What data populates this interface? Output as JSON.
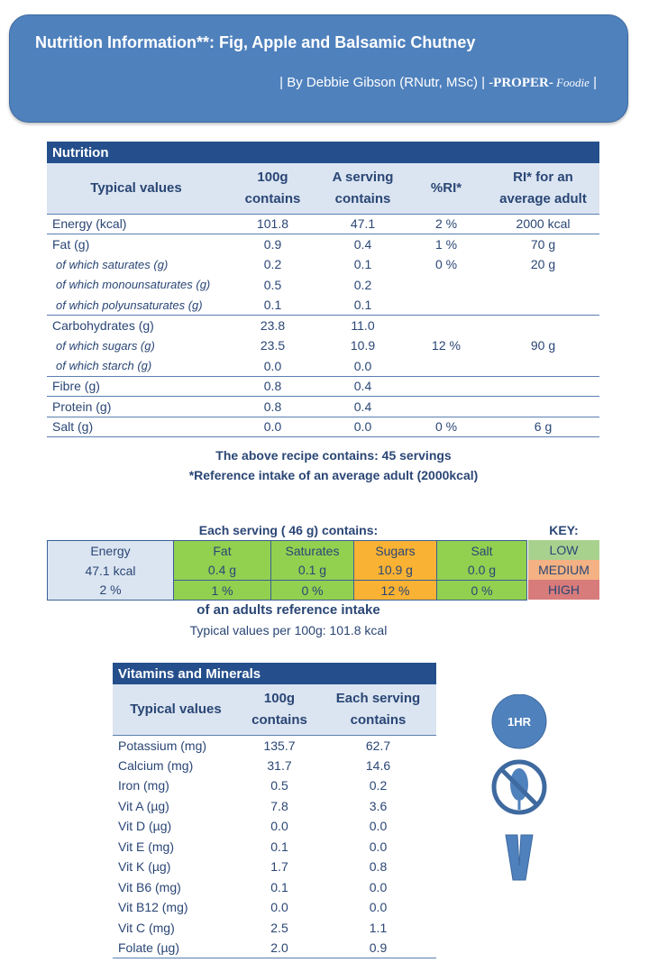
{
  "header": {
    "title": "Nutrition Information**:  Fig, Apple and Balsamic Chutney",
    "byline": "| By Debbie Gibson (RNutr, MSc) | ",
    "brand_proper": "-PROPER-",
    "brand_foodie": " Foodie",
    "end": " |"
  },
  "nutrition": {
    "caption": "Nutrition",
    "columns": [
      "Typical values",
      "100g contains",
      "A serving contains",
      "%RI*",
      "RI* for an average adult"
    ],
    "rows": [
      {
        "label": "Energy (kcal)",
        "per100": "101.8",
        "serving": "47.1",
        "ri": "2 %",
        "adult": "2000  kcal",
        "sub": false
      },
      {
        "label": "Fat (g)",
        "per100": "0.9",
        "serving": "0.4",
        "ri": "1 %",
        "adult": "70  g",
        "sub": false
      },
      {
        "label": "of which saturates (g)",
        "per100": "0.2",
        "serving": "0.1",
        "ri": "0 %",
        "adult": "20  g",
        "sub": true
      },
      {
        "label": "of which monounsaturates (g)",
        "per100": "0.5",
        "serving": "0.2",
        "ri": "",
        "adult": "",
        "sub": true
      },
      {
        "label": "of which polyunsaturates (g)",
        "per100": "0.1",
        "serving": "0.1",
        "ri": "",
        "adult": "",
        "sub": true
      },
      {
        "label": "Carbohydrates (g)",
        "per100": "23.8",
        "serving": "11.0",
        "ri": "",
        "adult": "",
        "sub": false
      },
      {
        "label": "of which sugars (g)",
        "per100": "23.5",
        "serving": "10.9",
        "ri": "12 %",
        "adult": "90  g",
        "sub": true
      },
      {
        "label": "of which starch (g)",
        "per100": "0.0",
        "serving": "0.0",
        "ri": "",
        "adult": "",
        "sub": true
      },
      {
        "label": "Fibre (g)",
        "per100": "0.8",
        "serving": "0.4",
        "ri": "",
        "adult": "",
        "sub": false
      },
      {
        "label": "Protein (g)",
        "per100": "0.8",
        "serving": "0.4",
        "ri": "",
        "adult": "",
        "sub": false
      },
      {
        "label": "Salt (g)",
        "per100": "0.0",
        "serving": "0.0",
        "ri": "0 %",
        "adult": "6  g",
        "sub": false
      }
    ],
    "servings_text": "The above recipe contains:    45    servings",
    "ri_note": "*Reference intake of an average adult (2000kcal)"
  },
  "traffic": {
    "title": "Each serving (     46  g) contains:",
    "energy": [
      "Energy",
      "47.1  kcal",
      "2  %"
    ],
    "fat": [
      "Fat",
      "0.4  g",
      "1  %"
    ],
    "saturates": [
      "Saturates",
      "0.1  g",
      "0  %"
    ],
    "sugars": [
      "Sugars",
      "10.9  g",
      "12  %"
    ],
    "salt": [
      "Salt",
      "0.0  g",
      "0  %"
    ],
    "footer": "of an adults reference intake",
    "typical": "Typical values per 100g:    101.8  kcal",
    "key": {
      "title": "KEY:",
      "low": "LOW",
      "medium": "MEDIUM",
      "high": "HIGH"
    },
    "colors": {
      "low": "#92d050",
      "medium": "#f9b233",
      "high": "#d77b7b",
      "key_low": "#a9d18e",
      "key_medium": "#f4b183"
    }
  },
  "vitamins": {
    "caption": "Vitamins and Minerals",
    "columns": [
      "Typical values",
      "100g contains",
      "Each serving contains"
    ],
    "rows": [
      [
        "Potassium (mg)",
        "135.7",
        "62.7"
      ],
      [
        "Calcium (mg)",
        "31.7",
        "14.6"
      ],
      [
        "Iron (mg)",
        "0.5",
        "0.2"
      ],
      [
        "Vit A (µg)",
        "7.8",
        "3.6"
      ],
      [
        "Vit D (µg)",
        "0.0",
        "0.0"
      ],
      [
        "Vit E (mg)",
        "0.1",
        "0.0"
      ],
      [
        "Vit K (µg)",
        "1.7",
        "0.8"
      ],
      [
        "Vit B6 (mg)",
        "0.1",
        "0.0"
      ],
      [
        "Vit B12 (mg)",
        "0.0",
        "0.0"
      ],
      [
        "Vit C (mg)",
        "2.5",
        "1.1"
      ],
      [
        "Folate (µg)",
        "2.0",
        "0.9"
      ]
    ]
  },
  "icons": {
    "time_label": "1HR",
    "items": [
      "time-1hr-icon",
      "gluten-free-icon",
      "vegetarian-icon"
    ]
  }
}
